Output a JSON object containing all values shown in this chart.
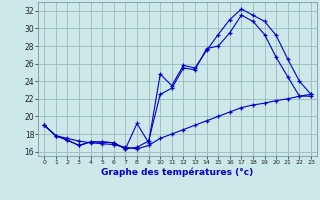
{
  "xlabel": "Graphe des températures (°c)",
  "bg_color": "#cce8e8",
  "line_color": "#0000cc",
  "grid_color": "#99bbbb",
  "xlim": [
    -0.5,
    23.5
  ],
  "ylim": [
    15.5,
    33.0
  ],
  "xticks": [
    0,
    1,
    2,
    3,
    4,
    5,
    6,
    7,
    8,
    9,
    10,
    11,
    12,
    13,
    14,
    15,
    16,
    17,
    18,
    19,
    20,
    21,
    22,
    23
  ],
  "yticks": [
    16,
    18,
    20,
    22,
    24,
    26,
    28,
    30,
    32
  ],
  "line1_x": [
    0,
    1,
    2,
    3,
    4,
    5,
    6,
    7,
    8,
    9,
    10,
    11,
    12,
    13,
    14,
    15,
    16,
    17,
    18,
    19,
    20,
    21,
    22,
    23
  ],
  "line1_y": [
    19.0,
    17.8,
    17.3,
    16.7,
    17.1,
    17.1,
    17.0,
    16.3,
    19.2,
    17.0,
    24.8,
    23.5,
    25.8,
    25.5,
    27.5,
    29.3,
    31.0,
    32.2,
    31.5,
    30.8,
    29.2,
    26.5,
    24.0,
    22.5
  ],
  "line2_x": [
    0,
    1,
    2,
    3,
    4,
    5,
    6,
    7,
    8,
    9,
    10,
    11,
    12,
    13,
    14,
    15,
    16,
    17,
    18,
    19,
    20,
    21,
    22,
    23
  ],
  "line2_y": [
    19.0,
    17.8,
    17.3,
    16.7,
    17.1,
    17.1,
    17.0,
    16.3,
    16.5,
    17.2,
    22.5,
    23.2,
    25.5,
    25.3,
    27.7,
    28.0,
    29.5,
    31.5,
    30.8,
    29.3,
    26.7,
    24.5,
    22.3,
    22.3
  ],
  "line3_x": [
    0,
    1,
    2,
    3,
    4,
    5,
    6,
    7,
    8,
    9,
    10,
    11,
    12,
    13,
    14,
    15,
    16,
    17,
    18,
    19,
    20,
    21,
    22,
    23
  ],
  "line3_y": [
    19.0,
    17.8,
    17.5,
    17.2,
    17.0,
    16.9,
    16.8,
    16.5,
    16.3,
    16.7,
    17.5,
    18.0,
    18.5,
    19.0,
    19.5,
    20.0,
    20.5,
    21.0,
    21.3,
    21.5,
    21.8,
    22.0,
    22.3,
    22.5
  ]
}
